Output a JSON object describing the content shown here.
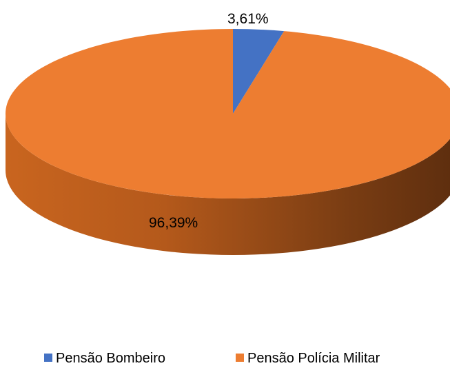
{
  "chart_data": {
    "type": "pie",
    "style": "3d",
    "categories": [
      "Pensão Bombeiro",
      "Pensão Polícia Militar"
    ],
    "values": [
      3.61,
      96.39
    ],
    "data_labels": [
      "3,61%",
      "96,39%"
    ],
    "colors": [
      "#4472C4",
      "#ED7D31"
    ],
    "legend": {
      "position": "bottom"
    }
  }
}
